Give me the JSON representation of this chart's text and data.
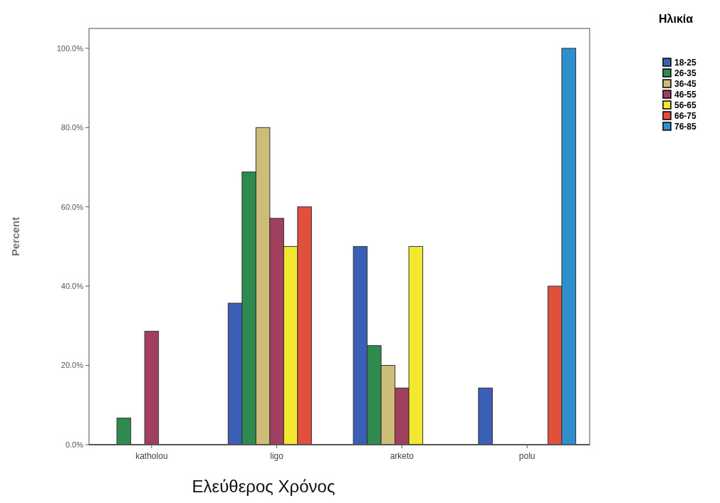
{
  "chart_data": {
    "type": "bar",
    "xlabel": "Ελεύθερος Χρόνος",
    "ylabel": "Percent",
    "legend_title": "Ηλικία",
    "legend": "top right",
    "grid": false,
    "categories": [
      "katholou",
      "ligo",
      "arketo",
      "polu"
    ],
    "ylim": [
      0,
      105
    ],
    "yticks": [
      {
        "value": 0,
        "label": "0.0%"
      },
      {
        "value": 20,
        "label": "20.0%"
      },
      {
        "value": 40,
        "label": "40.0%"
      },
      {
        "value": 60,
        "label": "60.0%"
      },
      {
        "value": 80,
        "label": "80.0%"
      },
      {
        "value": 100,
        "label": "100.0%"
      }
    ],
    "series": [
      {
        "name": "18-25",
        "color": "#3a5fb4",
        "values": [
          null,
          35.7,
          50,
          14.3
        ]
      },
      {
        "name": "26-35",
        "color": "#2e8a4e",
        "values": [
          6.7,
          68.8,
          25,
          null
        ]
      },
      {
        "name": "36-45",
        "color": "#cdbd78",
        "values": [
          null,
          80,
          20,
          null
        ]
      },
      {
        "name": "46-55",
        "color": "#a0405e",
        "values": [
          28.6,
          57.1,
          14.3,
          null
        ]
      },
      {
        "name": "56-65",
        "color": "#f2e830",
        "values": [
          null,
          50,
          50,
          null
        ]
      },
      {
        "name": "66-75",
        "color": "#e0503c",
        "values": [
          null,
          60,
          null,
          40
        ]
      },
      {
        "name": "76-85",
        "color": "#2f8fcc",
        "values": [
          null,
          null,
          null,
          100
        ]
      }
    ]
  }
}
